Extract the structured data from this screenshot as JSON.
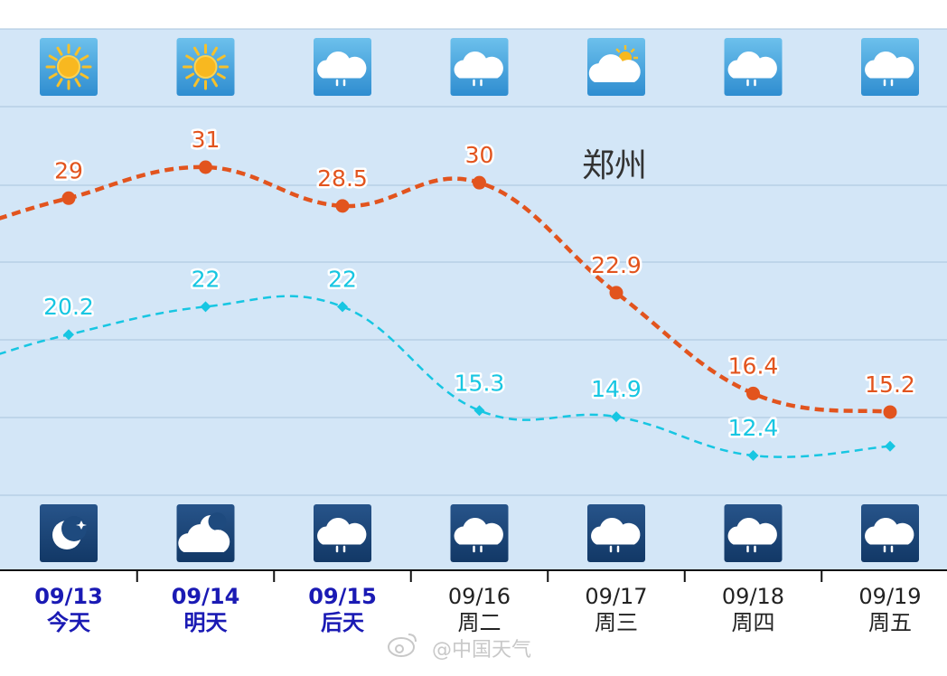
{
  "chart_data": {
    "type": "line",
    "title": "郑州",
    "x": [
      "09/13",
      "09/14",
      "09/15",
      "09/16",
      "09/17",
      "09/18",
      "09/19"
    ],
    "weekdays": [
      "今天",
      "明天",
      "后天",
      "周二",
      "周三",
      "周四",
      "周五"
    ],
    "highlight_days": 3,
    "ylim": [
      8,
      38
    ],
    "grid": true,
    "series": [
      {
        "values": [
          29,
          31,
          28.5,
          30,
          22.9,
          16.4,
          15.2
        ],
        "color": "#e2541e",
        "marker": "circle",
        "labels": [
          "29",
          "31",
          "28.5",
          "30",
          "22.9",
          "16.4",
          "15.2"
        ]
      },
      {
        "values": [
          20.2,
          22,
          22,
          15.3,
          14.9,
          12.4,
          13.0
        ],
        "color": "#17c6e2",
        "marker": "diamond",
        "labels": [
          "20.2",
          "22",
          "22",
          "15.3",
          "14.9",
          "12.4",
          ""
        ]
      }
    ],
    "day_icons": [
      "sun-icon",
      "sun-icon",
      "cloud-rain-icon",
      "cloud-rain-icon",
      "partly-cloudy-day-icon",
      "cloud-rain-icon",
      "cloud-rain-icon"
    ],
    "night_icons": [
      "moon-icon",
      "cloudy-night-icon",
      "cloud-rain-icon",
      "cloud-rain-icon",
      "cloud-rain-icon",
      "cloud-rain-icon",
      "cloud-rain-icon"
    ]
  },
  "watermark": "@中国天气",
  "colors": {
    "plot_bg": "#d3e6f7",
    "grid": "#a9c4dd",
    "day_icon_top": "#6cc0ec",
    "day_icon_bottom": "#2f8dd0",
    "night_icon_top": "#27548a",
    "night_icon_bottom": "#123866",
    "highlight": "#1a1ab4"
  }
}
